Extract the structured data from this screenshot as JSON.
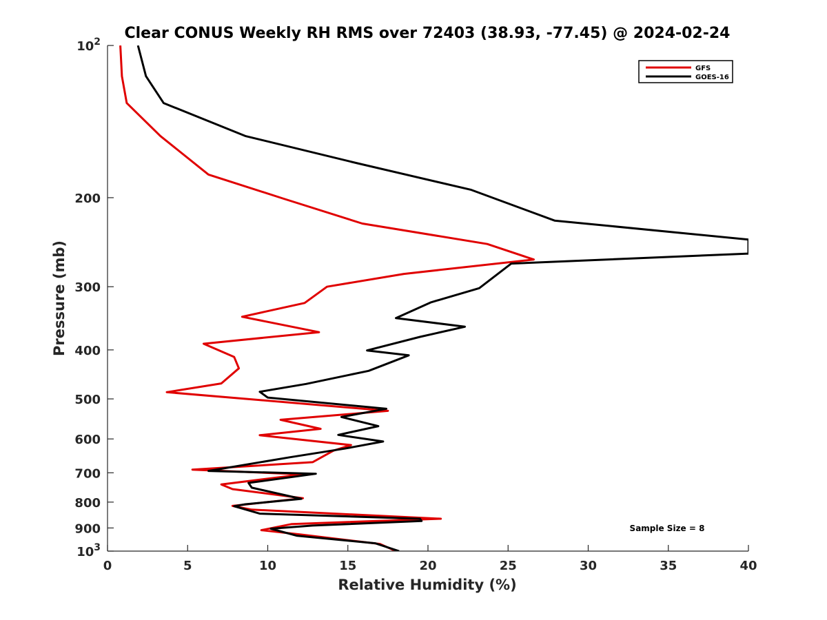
{
  "chart_data": {
    "type": "line",
    "title": "Clear CONUS Weekly RH RMS over 72403 (38.93, -77.45) @ 2024-02-24",
    "xlabel": "Relative Humidity (%)",
    "ylabel": "Pressure (mb)",
    "xlim": [
      0,
      40
    ],
    "ylim": [
      100,
      1000
    ],
    "y_scale": "log",
    "y_reversed": true,
    "x_ticks": [
      "0",
      "5",
      "10",
      "15",
      "20",
      "25",
      "30",
      "35",
      "40"
    ],
    "y_ticks": [
      {
        "value": 100,
        "base": "10",
        "exp": "2"
      },
      {
        "value": 200,
        "label": "200"
      },
      {
        "value": 300,
        "label": "300"
      },
      {
        "value": 400,
        "label": "400"
      },
      {
        "value": 500,
        "label": "500"
      },
      {
        "value": 600,
        "label": "600"
      },
      {
        "value": 700,
        "label": "700"
      },
      {
        "value": 800,
        "label": "800"
      },
      {
        "value": 900,
        "label": "900"
      },
      {
        "value": 1000,
        "base": "10",
        "exp": "3"
      }
    ],
    "legend": {
      "position": "top-right"
    },
    "grid": false,
    "annotations": [
      {
        "text": "Sample Size = 8"
      }
    ],
    "series": [
      {
        "name": "GFS",
        "color": "#e00000",
        "x": [
          0.8,
          0.9,
          1.2,
          3.3,
          6.3,
          11.0,
          15.9,
          23.7,
          26.6,
          18.5,
          13.7,
          12.3,
          8.4,
          13.2,
          6.0,
          7.9,
          8.2,
          7.1,
          3.7,
          17.5,
          10.8,
          13.3,
          9.5,
          15.2,
          14.1,
          12.8,
          5.3,
          12.2,
          7.1,
          7.8,
          12.2,
          7.8,
          9.0,
          20.8,
          11.5,
          9.6,
          12.0,
          17.0,
          18.0
        ],
        "y": [
          100,
          115,
          130,
          151,
          180,
          201,
          225,
          247,
          265,
          283,
          300,
          323,
          344,
          369,
          389,
          413,
          435,
          466,
          485,
          528,
          550,
          573,
          590,
          617,
          633,
          667,
          690,
          705,
          738,
          754,
          786,
          814,
          828,
          863,
          884,
          909,
          927,
          968,
          1000
        ]
      },
      {
        "name": "GOES-16",
        "color": "#000000",
        "x": [
          1.9,
          2.4,
          3.5,
          8.6,
          15.6,
          22.7,
          27.9,
          40.0,
          40.0,
          25.2,
          23.2,
          20.2,
          18.0,
          22.3,
          19.5,
          16.2,
          18.8,
          16.3,
          12.4,
          9.5,
          10.0,
          17.4,
          14.6,
          16.9,
          14.4,
          17.2,
          14.8,
          11.4,
          6.3,
          13.0,
          8.8,
          9.0,
          12.1,
          8.6,
          7.9,
          9.5,
          19.5,
          19.6,
          12.8,
          10.2,
          11.8,
          16.7,
          18.2
        ],
        "y": [
          100,
          115,
          130,
          151,
          171,
          193,
          222,
          242,
          258,
          270,
          302,
          322,
          346,
          360,
          377,
          401,
          410,
          440,
          467,
          484,
          497,
          523,
          543,
          566,
          589,
          607,
          627,
          652,
          694,
          703,
          733,
          749,
          788,
          808,
          815,
          843,
          863,
          872,
          890,
          903,
          932,
          965,
          1000
        ]
      }
    ]
  }
}
